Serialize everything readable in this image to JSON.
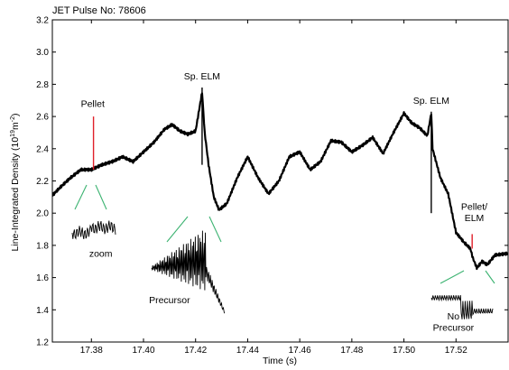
{
  "chart_data": {
    "type": "line",
    "title": "JET Pulse No: 78606",
    "xlabel": "Time (s)",
    "ylabel": "Line-Integrated Density (10",
    "ylabel_exponent": "19",
    "ylabel_unit": "m",
    "ylabel_unit_exponent": "-2",
    "ylabel_close": ")",
    "xlim": [
      17.365,
      17.54
    ],
    "ylim": [
      1.2,
      3.2
    ],
    "xticks": [
      17.38,
      17.4,
      17.42,
      17.44,
      17.46,
      17.48,
      17.5,
      17.52
    ],
    "xtick_labels": [
      "17.38",
      "17.40",
      "17.42",
      "17.44",
      "17.46",
      "17.48",
      "17.50",
      "17.52"
    ],
    "yticks": [
      1.2,
      1.4,
      1.6,
      1.8,
      2.0,
      2.2,
      2.4,
      2.6,
      2.8,
      3.0,
      3.2
    ],
    "ytick_labels": [
      "1.2",
      "1.4",
      "1.6",
      "1.8",
      "2.0",
      "2.2",
      "2.4",
      "2.6",
      "2.8",
      "3.0",
      "3.2"
    ],
    "grid": false,
    "legend": "none",
    "series": [
      {
        "color": "#000000",
        "points": [
          [
            17.365,
            2.11
          ],
          [
            17.368,
            2.16
          ],
          [
            17.372,
            2.22
          ],
          [
            17.376,
            2.27
          ],
          [
            17.38,
            2.27
          ],
          [
            17.384,
            2.3
          ],
          [
            17.388,
            2.32
          ],
          [
            17.392,
            2.35
          ],
          [
            17.396,
            2.32
          ],
          [
            17.4,
            2.38
          ],
          [
            17.404,
            2.44
          ],
          [
            17.408,
            2.52
          ],
          [
            17.411,
            2.55
          ],
          [
            17.414,
            2.51
          ],
          [
            17.417,
            2.49
          ],
          [
            17.42,
            2.51
          ],
          [
            17.4225,
            2.75
          ],
          [
            17.4235,
            2.5
          ],
          [
            17.425,
            2.3
          ],
          [
            17.427,
            2.1
          ],
          [
            17.429,
            2.02
          ],
          [
            17.432,
            2.06
          ],
          [
            17.436,
            2.22
          ],
          [
            17.44,
            2.35
          ],
          [
            17.444,
            2.22
          ],
          [
            17.448,
            2.12
          ],
          [
            17.452,
            2.2
          ],
          [
            17.456,
            2.35
          ],
          [
            17.46,
            2.38
          ],
          [
            17.464,
            2.27
          ],
          [
            17.468,
            2.32
          ],
          [
            17.472,
            2.45
          ],
          [
            17.476,
            2.44
          ],
          [
            17.48,
            2.38
          ],
          [
            17.484,
            2.42
          ],
          [
            17.488,
            2.47
          ],
          [
            17.492,
            2.37
          ],
          [
            17.496,
            2.5
          ],
          [
            17.5,
            2.62
          ],
          [
            17.503,
            2.56
          ],
          [
            17.506,
            2.53
          ],
          [
            17.509,
            2.48
          ],
          [
            17.5105,
            2.62
          ],
          [
            17.511,
            2.4
          ],
          [
            17.514,
            2.22
          ],
          [
            17.517,
            2.12
          ],
          [
            17.52,
            1.88
          ],
          [
            17.523,
            1.82
          ],
          [
            17.5255,
            1.78
          ],
          [
            17.5265,
            1.72
          ],
          [
            17.528,
            1.66
          ],
          [
            17.53,
            1.7
          ],
          [
            17.532,
            1.68
          ],
          [
            17.535,
            1.74
          ],
          [
            17.54,
            1.75
          ]
        ]
      }
    ],
    "markers": [
      {
        "x": 17.3808,
        "y_top": 2.6,
        "y_bottom": 2.27,
        "color": "#e0202a"
      },
      {
        "x": 17.5262,
        "y_top": 1.87,
        "y_bottom": 1.78,
        "color": "#e0202a"
      }
    ],
    "spikes": [
      {
        "x": 17.4225,
        "y_top": 2.78,
        "y_bottom": 2.3
      },
      {
        "x": 17.5105,
        "y_top": 2.63,
        "y_bottom": 2.0
      }
    ],
    "annotations": [
      {
        "text": "Pellet",
        "x": 17.3805,
        "y": 2.66
      },
      {
        "text": "Sp. ELM",
        "x": 17.4225,
        "y": 2.83
      },
      {
        "text": "Sp. ELM",
        "x": 17.5105,
        "y": 2.68
      },
      {
        "text": "Pellet/",
        "x": 17.527,
        "y": 2.02
      },
      {
        "text": "ELM",
        "x": 17.527,
        "y": 1.95
      },
      {
        "text": "zoom",
        "x": 17.3836,
        "y": 1.73
      },
      {
        "text": "Precursor",
        "x": 17.41,
        "y": 1.44
      },
      {
        "text": "No",
        "x": 17.519,
        "y": 1.34
      },
      {
        "text": "Precursor",
        "x": 17.519,
        "y": 1.27
      }
    ],
    "connector_color": "#3cb371",
    "insets": [
      "zoom",
      "Precursor",
      "No Precursor"
    ]
  }
}
